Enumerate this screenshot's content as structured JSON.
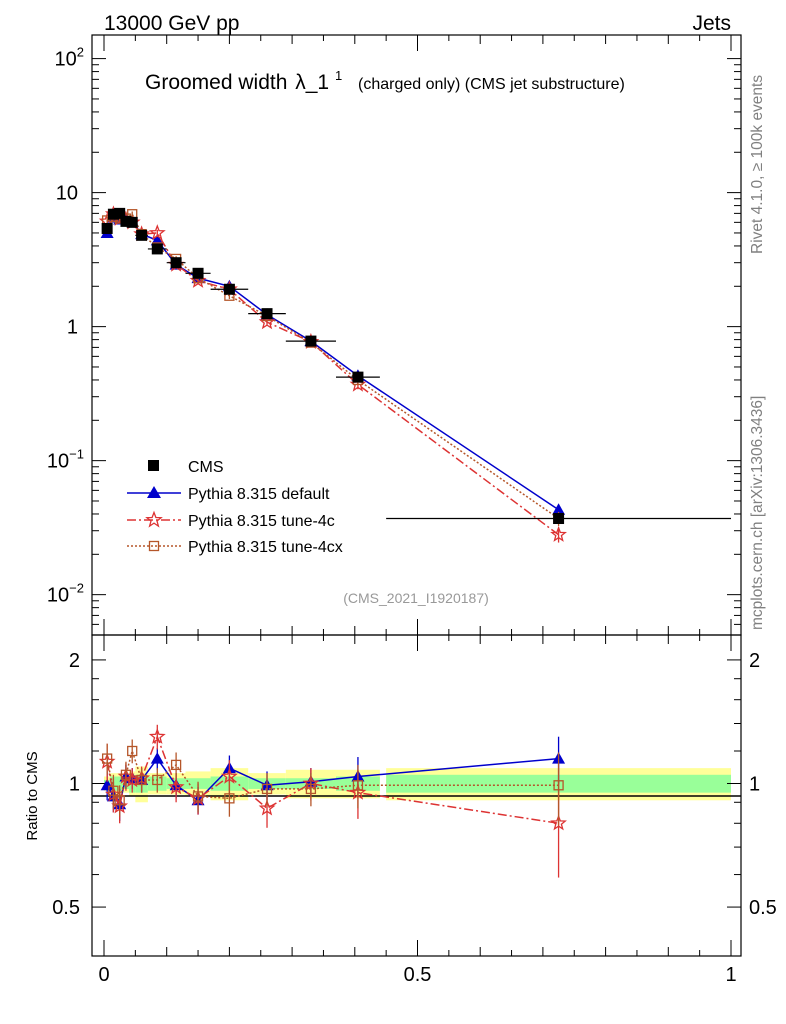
{
  "header": {
    "left": "13000 GeV pp",
    "right": "Jets",
    "side_top": "Rivet 4.1.0, ≥ 100k events",
    "side_bottom": "mcplots.cern.ch [arXiv:1306.3436]"
  },
  "title": {
    "main": "Groomed width",
    "lambda": "λ_1",
    "sup": "1",
    "sub": "(charged only) (CMS jet substructure)"
  },
  "analysis_tag": "(CMS_2021_I1920187)",
  "ratio_ylabel": "Ratio to CMS",
  "colors": {
    "cms": "#000000",
    "default": "#0000cc",
    "tune4c": "#dd3333",
    "tune4cx": "#b5562a",
    "band_inner": "#99ff99",
    "band_outer": "#ffff99"
  },
  "chart_data": {
    "type": "scatter",
    "title": "Groomed width λ_1^1 (charged only) (CMS jet substructure)",
    "xlim": [
      0,
      1
    ],
    "ylim": [
      0.005,
      150
    ],
    "yscale": "log",
    "ratio_ylim": [
      0.38,
      2.3
    ],
    "x_ticks": [
      {
        "value": 0,
        "label": "0"
      },
      {
        "value": 0.5,
        "label": "0.5"
      },
      {
        "value": 1,
        "label": "1"
      }
    ],
    "y_ticks": [
      {
        "value": 100,
        "base": "10",
        "exp": "2"
      },
      {
        "value": 10,
        "base": "10",
        "exp": ""
      },
      {
        "value": 1,
        "base": "1",
        "exp": ""
      },
      {
        "value": 0.1,
        "base": "10",
        "exp": "−1"
      },
      {
        "value": 0.01,
        "base": "10",
        "exp": "−2"
      }
    ],
    "ratio_y_ticks": [
      {
        "value": 2,
        "label": "2"
      },
      {
        "value": 1,
        "label": "1"
      },
      {
        "value": 0.5,
        "label": "0.5"
      }
    ],
    "x": [
      0.005,
      0.015,
      0.025,
      0.035,
      0.045,
      0.06,
      0.085,
      0.115,
      0.15,
      0.2,
      0.26,
      0.33,
      0.405,
      0.725
    ],
    "x_err": [
      0.005,
      0.005,
      0.005,
      0.005,
      0.005,
      0.01,
      0.015,
      0.015,
      0.02,
      0.03,
      0.03,
      0.04,
      0.035,
      0.275
    ],
    "series": [
      {
        "name": "CMS",
        "marker": "square",
        "values": [
          5.4,
          6.9,
          7.0,
          6.1,
          6.0,
          4.8,
          3.8,
          3.0,
          2.5,
          1.9,
          1.25,
          0.78,
          0.42,
          0.037
        ],
        "ratio": [
          1,
          1,
          1,
          1,
          1,
          1,
          1,
          1,
          1,
          1,
          1,
          1,
          1,
          1
        ],
        "band_inner": [
          0.02,
          0.04,
          0.04,
          0.03,
          0.05,
          0.05,
          0.04,
          0.03,
          0.03,
          0.04,
          0.03,
          0.03,
          0.04,
          0.05
        ],
        "band_outer": [
          0.04,
          0.06,
          0.06,
          0.05,
          0.07,
          0.1,
          0.06,
          0.06,
          0.07,
          0.09,
          0.06,
          0.08,
          0.08,
          0.09
        ]
      },
      {
        "name": "Pythia 8.315 default",
        "marker": "triangle",
        "line": "solid",
        "values": [
          5.0,
          6.5,
          6.3,
          6.3,
          6.1,
          4.9,
          4.4,
          2.9,
          2.3,
          2.0,
          1.23,
          0.78,
          0.43,
          0.043
        ],
        "ratio": [
          0.99,
          0.93,
          0.89,
          1.04,
          1.03,
          1.02,
          1.15,
          0.99,
          0.91,
          1.09,
          0.99,
          1.01,
          1.04,
          1.15
        ],
        "ratio_err": [
          0.08,
          0.08,
          0.08,
          0.07,
          0.06,
          0.07,
          0.07,
          0.07,
          0.07,
          0.08,
          0.08,
          0.08,
          0.12,
          0.15
        ]
      },
      {
        "name": "Pythia 8.315 tune-4c",
        "marker": "star",
        "line": "dashdot",
        "values": [
          6.1,
          6.9,
          6.4,
          6.3,
          6.0,
          4.9,
          5.0,
          2.9,
          2.2,
          1.9,
          1.08,
          0.77,
          0.37,
          0.028
        ],
        "ratio": [
          1.13,
          0.94,
          0.88,
          1.04,
          1.02,
          1.03,
          1.3,
          0.98,
          0.92,
          1.04,
          0.87,
          1.0,
          0.95,
          0.8
        ],
        "ratio_err": [
          0.12,
          0.09,
          0.08,
          0.08,
          0.07,
          0.07,
          0.09,
          0.08,
          0.08,
          0.1,
          0.09,
          0.09,
          0.13,
          0.21
        ]
      },
      {
        "name": "Pythia 8.315 tune-4cx",
        "marker": "opensquare",
        "line": "dotted",
        "values": [
          6.2,
          6.6,
          6.4,
          6.4,
          6.9,
          4.9,
          3.9,
          3.2,
          2.3,
          1.7,
          1.2,
          0.76,
          0.4,
          0.037
        ],
        "ratio": [
          1.15,
          0.96,
          0.91,
          1.05,
          1.2,
          1.02,
          1.02,
          1.11,
          0.93,
          0.92,
          0.97,
          0.97,
          0.99,
          0.99
        ],
        "ratio_err": [
          0.1,
          0.09,
          0.08,
          0.08,
          0.08,
          0.07,
          0.07,
          0.08,
          0.08,
          0.09,
          0.09,
          0.09,
          0.12,
          0.2
        ]
      }
    ]
  }
}
